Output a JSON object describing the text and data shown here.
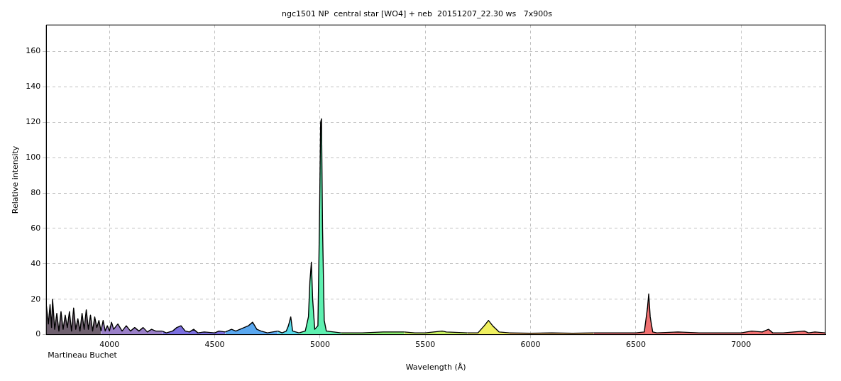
{
  "chart_data": {
    "type": "area",
    "title": "ngc1501 NP  central star [WO4] + neb  20151207_22.30 ws   7x900s",
    "xlabel": "Wavelength (Å)",
    "ylabel": "Relative intensity",
    "annotations": [
      "Martineau Buchet"
    ],
    "series": [
      {
        "color": "#6e5f6e",
        "x": [
          3700,
          3710,
          3718,
          3725,
          3730,
          3740,
          3750,
          3760,
          3770,
          3780,
          3790,
          3800,
          3810,
          3820,
          3830,
          3840,
          3850,
          3860,
          3870,
          3880,
          3890,
          3900,
          3910,
          3920,
          3930,
          3940,
          3950,
          3960
        ],
        "values": [
          17,
          6,
          17,
          4,
          20,
          3,
          12,
          2,
          13,
          3,
          11,
          4,
          13,
          2,
          15,
          3,
          9,
          2,
          12,
          3,
          14,
          3,
          11,
          2,
          10,
          4,
          8,
          2
        ]
      },
      {
        "color": "#9a7fc8",
        "x": [
          3960,
          3970,
          3980,
          3990,
          4000,
          4010,
          4020,
          4040,
          4060,
          4080,
          4100,
          4120,
          4140,
          4160,
          4180,
          4200,
          4220,
          4250
        ],
        "values": [
          2,
          8,
          2,
          5,
          2,
          7,
          3,
          6,
          2,
          5,
          2,
          4,
          2,
          4,
          1.5,
          3,
          2,
          2
        ]
      },
      {
        "color": "#7b6fe0",
        "x": [
          4250,
          4270,
          4300,
          4320,
          4340,
          4360,
          4380,
          4400,
          4420,
          4450,
          4500,
          4520,
          4550
        ],
        "values": [
          2,
          1,
          2,
          4,
          5,
          2,
          1.5,
          3,
          1,
          1.5,
          1,
          2,
          1.5
        ]
      },
      {
        "color": "#5aa8f0",
        "x": [
          4550,
          4580,
          4600,
          4620,
          4640,
          4660,
          4680,
          4700,
          4720,
          4750,
          4800
        ],
        "values": [
          1.5,
          3,
          2,
          3,
          4,
          5,
          7,
          3,
          2,
          1,
          2
        ]
      },
      {
        "color": "#58d8e8",
        "x": [
          4800,
          4820,
          4840,
          4850,
          4861,
          4870,
          4900
        ],
        "values": [
          2,
          1,
          2,
          5,
          10,
          2,
          1
        ]
      },
      {
        "color": "#5ef0b0",
        "x": [
          4900,
          4930,
          4945,
          4952,
          4959,
          4965,
          4975,
          4990,
          4997,
          5003,
          5007,
          5012,
          5020,
          5030,
          5100
        ],
        "values": [
          1,
          2,
          10,
          30,
          41,
          20,
          3,
          5,
          60,
          120,
          122,
          60,
          8,
          2,
          1
        ]
      },
      {
        "color": "#8ef070",
        "x": [
          5100,
          5200,
          5300,
          5400
        ],
        "values": [
          1,
          1,
          1.5,
          1.5
        ]
      },
      {
        "color": "#c8f060",
        "x": [
          5400,
          5450,
          5500,
          5580,
          5600,
          5700
        ],
        "values": [
          1.5,
          1,
          1,
          2,
          1.5,
          1
        ]
      },
      {
        "color": "#f0f060",
        "x": [
          5700,
          5750,
          5780,
          5800,
          5820,
          5850,
          5900
        ],
        "values": [
          1,
          1,
          5,
          8,
          5,
          1.5,
          1
        ]
      },
      {
        "color": "#f0b060",
        "x": [
          5900,
          6000,
          6100,
          6200,
          6300
        ],
        "values": [
          1,
          0.8,
          1,
          0.8,
          1
        ]
      },
      {
        "color": "#f07070",
        "x": [
          6300,
          6400,
          6500,
          6540,
          6555,
          6561,
          6568,
          6580,
          6600,
          6700,
          6800,
          6900,
          7000,
          7050,
          7100,
          7130,
          7150,
          7200,
          7300,
          7320,
          7350,
          7400
        ],
        "values": [
          1,
          1,
          1,
          1.5,
          15,
          23,
          10,
          1.5,
          1,
          1.5,
          1,
          1,
          1,
          2,
          1.5,
          3,
          1,
          1,
          2,
          1,
          1.5,
          1
        ]
      }
    ],
    "xlim": [
      3700,
      7400
    ],
    "xticks": [
      4000,
      4500,
      5000,
      5500,
      6000,
      6500,
      7000
    ],
    "ylim": [
      0,
      175
    ],
    "yticks": [
      0,
      20,
      40,
      60,
      80,
      100,
      120,
      140,
      160
    ],
    "grid": true,
    "legend": false,
    "marker": "none",
    "line_style": "solid"
  }
}
